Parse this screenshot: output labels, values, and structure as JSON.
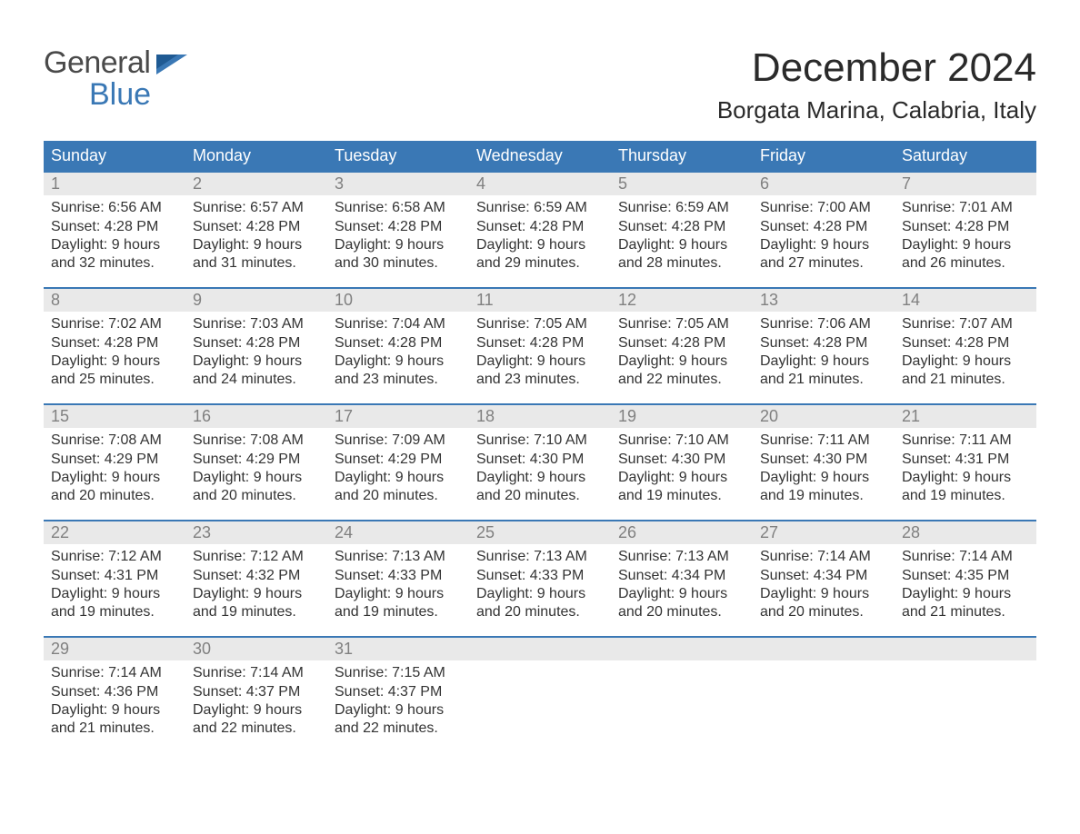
{
  "brand": {
    "word1": "General",
    "word2": "Blue"
  },
  "title": "December 2024",
  "location": "Borgata Marina, Calabria, Italy",
  "colors": {
    "brand_blue": "#3a78b5",
    "header_grey": "#e9e9e9",
    "daynum_grey": "#808080",
    "text": "#333333",
    "background": "#ffffff"
  },
  "day_names": [
    "Sunday",
    "Monday",
    "Tuesday",
    "Wednesday",
    "Thursday",
    "Friday",
    "Saturday"
  ],
  "labels": {
    "sunrise": "Sunrise:",
    "sunset": "Sunset:",
    "daylight": "Daylight:"
  },
  "weeks": [
    [
      {
        "n": 1,
        "sunrise": "6:56 AM",
        "sunset": "4:28 PM",
        "dl1": "9 hours",
        "dl2": "and 32 minutes."
      },
      {
        "n": 2,
        "sunrise": "6:57 AM",
        "sunset": "4:28 PM",
        "dl1": "9 hours",
        "dl2": "and 31 minutes."
      },
      {
        "n": 3,
        "sunrise": "6:58 AM",
        "sunset": "4:28 PM",
        "dl1": "9 hours",
        "dl2": "and 30 minutes."
      },
      {
        "n": 4,
        "sunrise": "6:59 AM",
        "sunset": "4:28 PM",
        "dl1": "9 hours",
        "dl2": "and 29 minutes."
      },
      {
        "n": 5,
        "sunrise": "6:59 AM",
        "sunset": "4:28 PM",
        "dl1": "9 hours",
        "dl2": "and 28 minutes."
      },
      {
        "n": 6,
        "sunrise": "7:00 AM",
        "sunset": "4:28 PM",
        "dl1": "9 hours",
        "dl2": "and 27 minutes."
      },
      {
        "n": 7,
        "sunrise": "7:01 AM",
        "sunset": "4:28 PM",
        "dl1": "9 hours",
        "dl2": "and 26 minutes."
      }
    ],
    [
      {
        "n": 8,
        "sunrise": "7:02 AM",
        "sunset": "4:28 PM",
        "dl1": "9 hours",
        "dl2": "and 25 minutes."
      },
      {
        "n": 9,
        "sunrise": "7:03 AM",
        "sunset": "4:28 PM",
        "dl1": "9 hours",
        "dl2": "and 24 minutes."
      },
      {
        "n": 10,
        "sunrise": "7:04 AM",
        "sunset": "4:28 PM",
        "dl1": "9 hours",
        "dl2": "and 23 minutes."
      },
      {
        "n": 11,
        "sunrise": "7:05 AM",
        "sunset": "4:28 PM",
        "dl1": "9 hours",
        "dl2": "and 23 minutes."
      },
      {
        "n": 12,
        "sunrise": "7:05 AM",
        "sunset": "4:28 PM",
        "dl1": "9 hours",
        "dl2": "and 22 minutes."
      },
      {
        "n": 13,
        "sunrise": "7:06 AM",
        "sunset": "4:28 PM",
        "dl1": "9 hours",
        "dl2": "and 21 minutes."
      },
      {
        "n": 14,
        "sunrise": "7:07 AM",
        "sunset": "4:28 PM",
        "dl1": "9 hours",
        "dl2": "and 21 minutes."
      }
    ],
    [
      {
        "n": 15,
        "sunrise": "7:08 AM",
        "sunset": "4:29 PM",
        "dl1": "9 hours",
        "dl2": "and 20 minutes."
      },
      {
        "n": 16,
        "sunrise": "7:08 AM",
        "sunset": "4:29 PM",
        "dl1": "9 hours",
        "dl2": "and 20 minutes."
      },
      {
        "n": 17,
        "sunrise": "7:09 AM",
        "sunset": "4:29 PM",
        "dl1": "9 hours",
        "dl2": "and 20 minutes."
      },
      {
        "n": 18,
        "sunrise": "7:10 AM",
        "sunset": "4:30 PM",
        "dl1": "9 hours",
        "dl2": "and 20 minutes."
      },
      {
        "n": 19,
        "sunrise": "7:10 AM",
        "sunset": "4:30 PM",
        "dl1": "9 hours",
        "dl2": "and 19 minutes."
      },
      {
        "n": 20,
        "sunrise": "7:11 AM",
        "sunset": "4:30 PM",
        "dl1": "9 hours",
        "dl2": "and 19 minutes."
      },
      {
        "n": 21,
        "sunrise": "7:11 AM",
        "sunset": "4:31 PM",
        "dl1": "9 hours",
        "dl2": "and 19 minutes."
      }
    ],
    [
      {
        "n": 22,
        "sunrise": "7:12 AM",
        "sunset": "4:31 PM",
        "dl1": "9 hours",
        "dl2": "and 19 minutes."
      },
      {
        "n": 23,
        "sunrise": "7:12 AM",
        "sunset": "4:32 PM",
        "dl1": "9 hours",
        "dl2": "and 19 minutes."
      },
      {
        "n": 24,
        "sunrise": "7:13 AM",
        "sunset": "4:33 PM",
        "dl1": "9 hours",
        "dl2": "and 19 minutes."
      },
      {
        "n": 25,
        "sunrise": "7:13 AM",
        "sunset": "4:33 PM",
        "dl1": "9 hours",
        "dl2": "and 20 minutes."
      },
      {
        "n": 26,
        "sunrise": "7:13 AM",
        "sunset": "4:34 PM",
        "dl1": "9 hours",
        "dl2": "and 20 minutes."
      },
      {
        "n": 27,
        "sunrise": "7:14 AM",
        "sunset": "4:34 PM",
        "dl1": "9 hours",
        "dl2": "and 20 minutes."
      },
      {
        "n": 28,
        "sunrise": "7:14 AM",
        "sunset": "4:35 PM",
        "dl1": "9 hours",
        "dl2": "and 21 minutes."
      }
    ],
    [
      {
        "n": 29,
        "sunrise": "7:14 AM",
        "sunset": "4:36 PM",
        "dl1": "9 hours",
        "dl2": "and 21 minutes."
      },
      {
        "n": 30,
        "sunrise": "7:14 AM",
        "sunset": "4:37 PM",
        "dl1": "9 hours",
        "dl2": "and 22 minutes."
      },
      {
        "n": 31,
        "sunrise": "7:15 AM",
        "sunset": "4:37 PM",
        "dl1": "9 hours",
        "dl2": "and 22 minutes."
      },
      null,
      null,
      null,
      null
    ]
  ]
}
